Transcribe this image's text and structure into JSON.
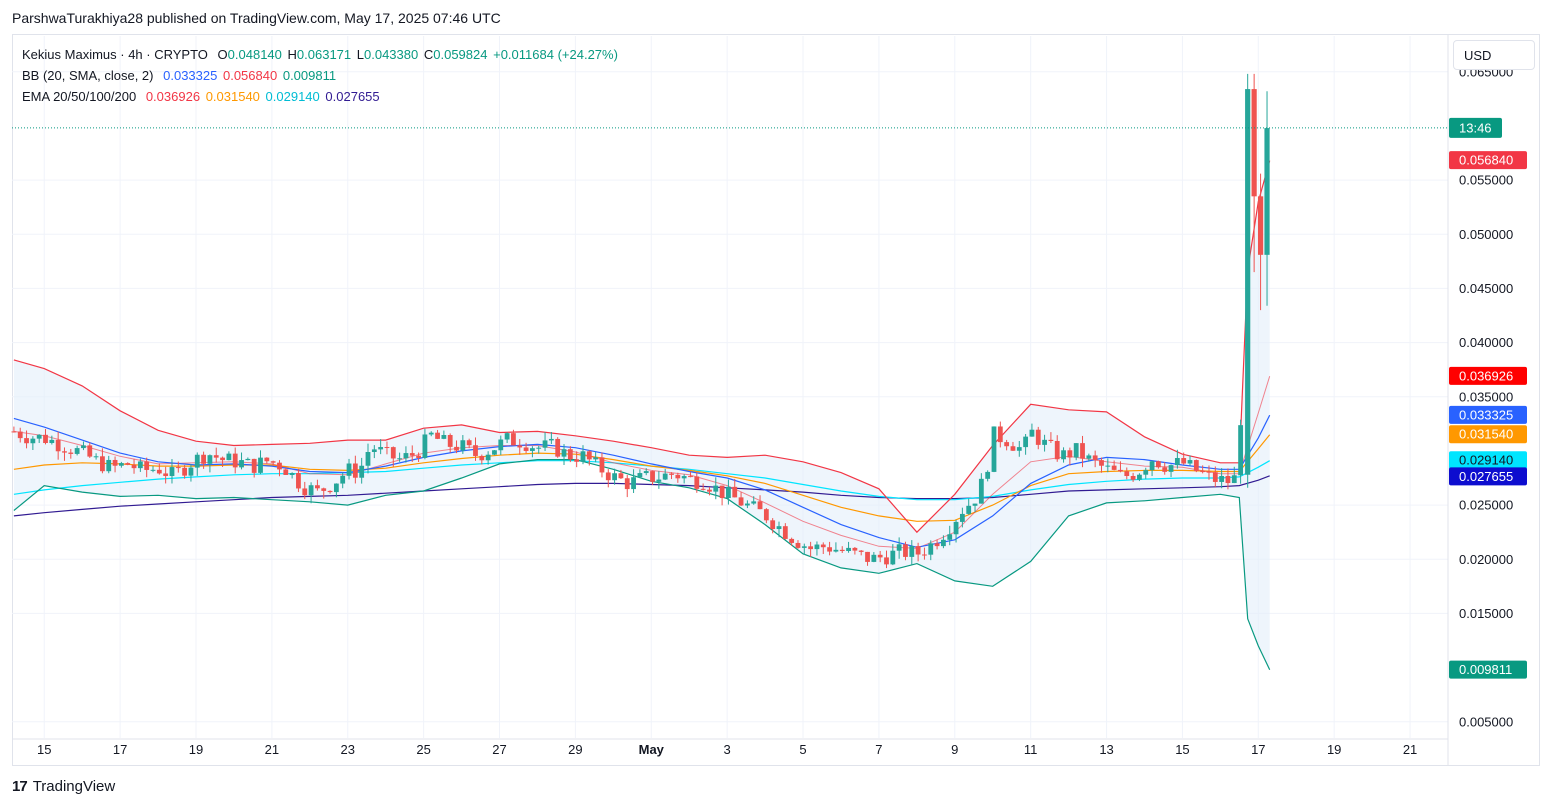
{
  "header": {
    "publish_line": "ParshwaTurakhiya28 published on TradingView.com, May 17, 2025 07:46 UTC"
  },
  "legend": {
    "symbol": {
      "name": "Kekius Maximus · 4h · CRYPTO",
      "open_label": "O",
      "open": "0.048140",
      "high_label": "H",
      "high": "0.063171",
      "low_label": "L",
      "low": "0.043380",
      "close_label": "C",
      "close": "0.059824",
      "change": "+0.011684 (+24.27%)"
    },
    "bb": {
      "name": "BB (20, SMA, close, 2)",
      "basis": "0.033325",
      "upper": "0.056840",
      "lower": "0.009811"
    },
    "ema": {
      "name": "EMA 20/50/100/200",
      "ema20": "0.036926",
      "ema50": "0.031540",
      "ema100": "0.029140",
      "ema200": "0.027655"
    }
  },
  "currency_button": {
    "label": "USD"
  },
  "footer": {
    "logo_mark": "17",
    "logo_text": "TradingView"
  },
  "colors": {
    "up": "#26a69a",
    "down": "#ef5350",
    "bb_basis": "#2962ff",
    "bb_band": "#f23645",
    "bb_lower": "#089981",
    "bb_fill": "#e3eefa",
    "ema20": "#f23645",
    "ema50": "#ff9800",
    "ema100": "#00e5ff",
    "ema200": "#311b92",
    "grid": "#f0f3fa",
    "axis_text": "#131722",
    "last_price_tag": "#089981"
  },
  "chart_data": {
    "type": "candlestick",
    "title": "Kekius Maximus · 4h · CRYPTO",
    "timeframe": "4h",
    "x_ticks": [
      "15",
      "17",
      "19",
      "21",
      "23",
      "25",
      "27",
      "29",
      "May",
      "3",
      "5",
      "7",
      "9",
      "11",
      "13",
      "15",
      "17",
      "19",
      "21"
    ],
    "x_tick_days": [
      15,
      17,
      19,
      21,
      23,
      25,
      27,
      29,
      31,
      33,
      35,
      37,
      39,
      41,
      43,
      45,
      47,
      49,
      51
    ],
    "x_range_days": [
      14.15,
      52.0
    ],
    "y_ticks": [
      "0.065000",
      "0.055000",
      "0.050000",
      "0.045000",
      "0.040000",
      "0.035000",
      "0.025000",
      "0.020000",
      "0.015000",
      "0.005000"
    ],
    "y_tick_values": [
      0.065,
      0.055,
      0.05,
      0.045,
      0.04,
      0.035,
      0.025,
      0.02,
      0.015,
      0.005
    ],
    "ylim": [
      0.0035,
      0.0683
    ],
    "last_price": 0.059824,
    "last_price_countdown": "13:46",
    "price_tags": [
      {
        "label": "0.056840",
        "value": 0.05684,
        "color": "#f23645"
      },
      {
        "label": "0.036926",
        "value": 0.036926,
        "color": "#ff0000"
      },
      {
        "label": "0.033325",
        "value": 0.033325,
        "color": "#2962ff"
      },
      {
        "label": "0.031540",
        "value": 0.03154,
        "color": "#ff9800"
      },
      {
        "label": "0.029140",
        "value": 0.02914,
        "color": "#00e5ff",
        "text_color": "#131722"
      },
      {
        "label": "0.027655",
        "value": 0.027655,
        "color": "#0d0dcf"
      },
      {
        "label": "0.009811",
        "value": 0.009811,
        "color": "#089981"
      }
    ],
    "close_path": [
      [
        14.2,
        0.0318
      ],
      [
        14.6,
        0.0313
      ],
      [
        15.0,
        0.0312
      ],
      [
        15.5,
        0.0305
      ],
      [
        16.0,
        0.0298
      ],
      [
        16.4,
        0.029
      ],
      [
        16.8,
        0.0284
      ],
      [
        17.2,
        0.0288
      ],
      [
        17.6,
        0.0282
      ],
      [
        18.0,
        0.0284
      ],
      [
        18.4,
        0.0277
      ],
      [
        18.9,
        0.029
      ],
      [
        19.3,
        0.0298
      ],
      [
        19.7,
        0.0292
      ],
      [
        20.1,
        0.029
      ],
      [
        20.5,
        0.0286
      ],
      [
        20.9,
        0.0291
      ],
      [
        21.3,
        0.0286
      ],
      [
        21.8,
        0.0268
      ],
      [
        22.2,
        0.0262
      ],
      [
        22.6,
        0.027
      ],
      [
        23.0,
        0.0282
      ],
      [
        23.3,
        0.0281
      ],
      [
        23.6,
        0.0305
      ],
      [
        24.0,
        0.0296
      ],
      [
        24.4,
        0.0292
      ],
      [
        24.8,
        0.0298
      ],
      [
        25.2,
        0.0314
      ],
      [
        25.6,
        0.0306
      ],
      [
        26.0,
        0.0304
      ],
      [
        26.4,
        0.0296
      ],
      [
        26.8,
        0.0302
      ],
      [
        27.2,
        0.031
      ],
      [
        27.6,
        0.0309
      ],
      [
        28.0,
        0.0303
      ],
      [
        28.4,
        0.0304
      ],
      [
        28.8,
        0.0296
      ],
      [
        29.2,
        0.0295
      ],
      [
        29.6,
        0.0285
      ],
      [
        30.0,
        0.0276
      ],
      [
        30.4,
        0.027
      ],
      [
        30.8,
        0.0275
      ],
      [
        31.2,
        0.0276
      ],
      [
        31.6,
        0.0279
      ],
      [
        32.0,
        0.0274
      ],
      [
        32.4,
        0.0272
      ],
      [
        32.8,
        0.0263
      ],
      [
        33.2,
        0.0256
      ],
      [
        33.6,
        0.0248
      ],
      [
        34.0,
        0.0241
      ],
      [
        34.4,
        0.0229
      ],
      [
        34.8,
        0.0218
      ],
      [
        35.2,
        0.021
      ],
      [
        35.6,
        0.0212
      ],
      [
        36.0,
        0.0208
      ],
      [
        36.4,
        0.0204
      ],
      [
        36.8,
        0.02
      ],
      [
        37.2,
        0.0203
      ],
      [
        37.6,
        0.0207
      ],
      [
        38.0,
        0.0205
      ],
      [
        38.4,
        0.0214
      ],
      [
        38.8,
        0.0228
      ],
      [
        39.2,
        0.0246
      ],
      [
        39.5,
        0.0255
      ],
      [
        39.8,
        0.0275
      ],
      [
        40.0,
        0.0315
      ],
      [
        40.4,
        0.031
      ],
      [
        40.8,
        0.03
      ],
      [
        41.0,
        0.0318
      ],
      [
        41.4,
        0.0305
      ],
      [
        41.8,
        0.0295
      ],
      [
        42.2,
        0.03
      ],
      [
        42.6,
        0.029
      ],
      [
        43.0,
        0.0283
      ],
      [
        43.4,
        0.0276
      ],
      [
        43.8,
        0.028
      ],
      [
        44.2,
        0.0293
      ],
      [
        44.6,
        0.0286
      ],
      [
        45.0,
        0.0289
      ],
      [
        45.4,
        0.0281
      ],
      [
        45.8,
        0.0274
      ],
      [
        46.2,
        0.0272
      ],
      [
        46.5,
        0.0276
      ],
      [
        46.72,
        0.0634
      ],
      [
        46.95,
        0.0535
      ],
      [
        47.1,
        0.0481
      ],
      [
        47.3,
        0.0598
      ]
    ],
    "bb_basis": [
      [
        14.2,
        0.033
      ],
      [
        15.0,
        0.0322
      ],
      [
        16.0,
        0.031
      ],
      [
        17.0,
        0.0298
      ],
      [
        18.0,
        0.029
      ],
      [
        19.0,
        0.0287
      ],
      [
        20.0,
        0.0288
      ],
      [
        21.0,
        0.0286
      ],
      [
        22.0,
        0.0281
      ],
      [
        23.0,
        0.028
      ],
      [
        24.0,
        0.0286
      ],
      [
        25.0,
        0.0294
      ],
      [
        26.0,
        0.03
      ],
      [
        27.0,
        0.0304
      ],
      [
        28.0,
        0.0306
      ],
      [
        29.0,
        0.0303
      ],
      [
        30.0,
        0.0296
      ],
      [
        31.0,
        0.0288
      ],
      [
        32.0,
        0.0281
      ],
      [
        33.0,
        0.0275
      ],
      [
        34.0,
        0.0264
      ],
      [
        35.0,
        0.0248
      ],
      [
        36.0,
        0.0232
      ],
      [
        37.0,
        0.022
      ],
      [
        38.0,
        0.0211
      ],
      [
        39.0,
        0.0218
      ],
      [
        40.0,
        0.024
      ],
      [
        41.0,
        0.027
      ],
      [
        42.0,
        0.0287
      ],
      [
        43.0,
        0.0294
      ],
      [
        44.0,
        0.0292
      ],
      [
        45.0,
        0.0287
      ],
      [
        46.0,
        0.0283
      ],
      [
        46.5,
        0.0283
      ],
      [
        47.0,
        0.0312
      ],
      [
        47.3,
        0.0333
      ]
    ],
    "bb_upper": [
      [
        14.2,
        0.0384
      ],
      [
        15.0,
        0.0376
      ],
      [
        16.0,
        0.036
      ],
      [
        17.0,
        0.0337
      ],
      [
        18.0,
        0.0319
      ],
      [
        19.0,
        0.0309
      ],
      [
        20.0,
        0.0305
      ],
      [
        21.0,
        0.0306
      ],
      [
        22.0,
        0.0307
      ],
      [
        23.0,
        0.031
      ],
      [
        24.0,
        0.031
      ],
      [
        25.0,
        0.0321
      ],
      [
        26.0,
        0.0324
      ],
      [
        27.0,
        0.0317
      ],
      [
        28.0,
        0.0318
      ],
      [
        29.0,
        0.0314
      ],
      [
        30.0,
        0.0309
      ],
      [
        31.0,
        0.0303
      ],
      [
        32.0,
        0.0296
      ],
      [
        33.0,
        0.0294
      ],
      [
        34.0,
        0.0296
      ],
      [
        35.0,
        0.029
      ],
      [
        36.0,
        0.028
      ],
      [
        37.0,
        0.0265
      ],
      [
        38.0,
        0.0225
      ],
      [
        39.0,
        0.026
      ],
      [
        40.0,
        0.0305
      ],
      [
        41.0,
        0.0343
      ],
      [
        42.0,
        0.0338
      ],
      [
        43.0,
        0.0336
      ],
      [
        44.0,
        0.0313
      ],
      [
        45.0,
        0.0297
      ],
      [
        46.0,
        0.0289
      ],
      [
        46.5,
        0.0289
      ],
      [
        46.72,
        0.0467
      ],
      [
        47.0,
        0.053
      ],
      [
        47.3,
        0.0568
      ]
    ],
    "bb_lower": [
      [
        14.2,
        0.0245
      ],
      [
        15.0,
        0.0268
      ],
      [
        16.0,
        0.0262
      ],
      [
        17.0,
        0.0258
      ],
      [
        18.0,
        0.0259
      ],
      [
        19.0,
        0.0256
      ],
      [
        20.0,
        0.0257
      ],
      [
        21.0,
        0.0255
      ],
      [
        22.0,
        0.0253
      ],
      [
        23.0,
        0.025
      ],
      [
        24.0,
        0.0259
      ],
      [
        25.0,
        0.0263
      ],
      [
        26.0,
        0.0275
      ],
      [
        27.0,
        0.0288
      ],
      [
        28.0,
        0.0292
      ],
      [
        29.0,
        0.0292
      ],
      [
        30.0,
        0.0283
      ],
      [
        31.0,
        0.0272
      ],
      [
        32.0,
        0.0266
      ],
      [
        33.0,
        0.0256
      ],
      [
        34.0,
        0.0232
      ],
      [
        35.0,
        0.0205
      ],
      [
        36.0,
        0.0192
      ],
      [
        37.0,
        0.0187
      ],
      [
        38.0,
        0.0196
      ],
      [
        39.0,
        0.018
      ],
      [
        40.0,
        0.0175
      ],
      [
        41.0,
        0.0198
      ],
      [
        42.0,
        0.024
      ],
      [
        43.0,
        0.0252
      ],
      [
        44.0,
        0.0254
      ],
      [
        45.0,
        0.0257
      ],
      [
        46.0,
        0.026
      ],
      [
        46.5,
        0.0257
      ],
      [
        46.72,
        0.0145
      ],
      [
        47.0,
        0.012
      ],
      [
        47.3,
        0.0098
      ]
    ],
    "ema20": [
      [
        14.2,
        0.0318
      ],
      [
        15.0,
        0.0314
      ],
      [
        16.0,
        0.0305
      ],
      [
        17.0,
        0.0295
      ],
      [
        18.0,
        0.0288
      ],
      [
        19.0,
        0.0289
      ],
      [
        20.0,
        0.029
      ],
      [
        21.0,
        0.0288
      ],
      [
        22.0,
        0.0279
      ],
      [
        23.0,
        0.0278
      ],
      [
        24.0,
        0.0288
      ],
      [
        25.0,
        0.0298
      ],
      [
        26.0,
        0.0303
      ],
      [
        27.0,
        0.0305
      ],
      [
        28.0,
        0.0305
      ],
      [
        29.0,
        0.0299
      ],
      [
        30.0,
        0.0289
      ],
      [
        31.0,
        0.0282
      ],
      [
        32.0,
        0.0278
      ],
      [
        33.0,
        0.0268
      ],
      [
        34.0,
        0.0252
      ],
      [
        35.0,
        0.0235
      ],
      [
        36.0,
        0.0222
      ],
      [
        37.0,
        0.0212
      ],
      [
        38.0,
        0.021
      ],
      [
        39.0,
        0.0225
      ],
      [
        40.0,
        0.026
      ],
      [
        41.0,
        0.029
      ],
      [
        42.0,
        0.0295
      ],
      [
        43.0,
        0.029
      ],
      [
        44.0,
        0.0286
      ],
      [
        45.0,
        0.0285
      ],
      [
        46.0,
        0.0279
      ],
      [
        46.5,
        0.0279
      ],
      [
        47.0,
        0.0335
      ],
      [
        47.3,
        0.0369
      ]
    ],
    "ema50": [
      [
        14.2,
        0.0283
      ],
      [
        15.0,
        0.0287
      ],
      [
        16.0,
        0.0289
      ],
      [
        17.0,
        0.0288
      ],
      [
        18.0,
        0.0286
      ],
      [
        19.0,
        0.0286
      ],
      [
        20.0,
        0.0287
      ],
      [
        21.0,
        0.0287
      ],
      [
        22.0,
        0.0283
      ],
      [
        23.0,
        0.0282
      ],
      [
        24.0,
        0.0284
      ],
      [
        25.0,
        0.0289
      ],
      [
        26.0,
        0.0293
      ],
      [
        27.0,
        0.0296
      ],
      [
        28.0,
        0.0298
      ],
      [
        29.0,
        0.0297
      ],
      [
        30.0,
        0.0292
      ],
      [
        31.0,
        0.0286
      ],
      [
        32.0,
        0.0282
      ],
      [
        33.0,
        0.0277
      ],
      [
        34.0,
        0.027
      ],
      [
        35.0,
        0.0259
      ],
      [
        36.0,
        0.0248
      ],
      [
        37.0,
        0.024
      ],
      [
        38.0,
        0.0235
      ],
      [
        39.0,
        0.0236
      ],
      [
        40.0,
        0.025
      ],
      [
        41.0,
        0.0268
      ],
      [
        42.0,
        0.0279
      ],
      [
        43.0,
        0.0281
      ],
      [
        44.0,
        0.0282
      ],
      [
        45.0,
        0.0282
      ],
      [
        46.0,
        0.0281
      ],
      [
        46.5,
        0.0281
      ],
      [
        47.0,
        0.0302
      ],
      [
        47.3,
        0.0315
      ]
    ],
    "ema100": [
      [
        14.2,
        0.026
      ],
      [
        15.0,
        0.0264
      ],
      [
        16.0,
        0.0268
      ],
      [
        17.0,
        0.0271
      ],
      [
        18.0,
        0.0274
      ],
      [
        19.0,
        0.0276
      ],
      [
        20.0,
        0.0278
      ],
      [
        21.0,
        0.0279
      ],
      [
        22.0,
        0.0279
      ],
      [
        23.0,
        0.028
      ],
      [
        24.0,
        0.0281
      ],
      [
        25.0,
        0.0284
      ],
      [
        26.0,
        0.0287
      ],
      [
        27.0,
        0.0289
      ],
      [
        28.0,
        0.0291
      ],
      [
        29.0,
        0.0291
      ],
      [
        30.0,
        0.0289
      ],
      [
        31.0,
        0.0286
      ],
      [
        32.0,
        0.0283
      ],
      [
        33.0,
        0.0279
      ],
      [
        34.0,
        0.0275
      ],
      [
        35.0,
        0.0269
      ],
      [
        36.0,
        0.0263
      ],
      [
        37.0,
        0.0258
      ],
      [
        38.0,
        0.0255
      ],
      [
        39.0,
        0.0255
      ],
      [
        40.0,
        0.0258
      ],
      [
        41.0,
        0.0264
      ],
      [
        42.0,
        0.0269
      ],
      [
        43.0,
        0.0272
      ],
      [
        44.0,
        0.0274
      ],
      [
        45.0,
        0.0275
      ],
      [
        46.0,
        0.0275
      ],
      [
        46.5,
        0.0276
      ],
      [
        47.0,
        0.0285
      ],
      [
        47.3,
        0.0291
      ]
    ],
    "ema200": [
      [
        14.2,
        0.024
      ],
      [
        15.0,
        0.0243
      ],
      [
        16.0,
        0.0246
      ],
      [
        17.0,
        0.0249
      ],
      [
        18.0,
        0.0251
      ],
      [
        19.0,
        0.0253
      ],
      [
        20.0,
        0.0255
      ],
      [
        21.0,
        0.0257
      ],
      [
        22.0,
        0.0258
      ],
      [
        23.0,
        0.0259
      ],
      [
        24.0,
        0.0261
      ],
      [
        25.0,
        0.0263
      ],
      [
        26.0,
        0.0265
      ],
      [
        27.0,
        0.0267
      ],
      [
        28.0,
        0.0269
      ],
      [
        29.0,
        0.027
      ],
      [
        30.0,
        0.027
      ],
      [
        31.0,
        0.0269
      ],
      [
        32.0,
        0.0268
      ],
      [
        33.0,
        0.0266
      ],
      [
        34.0,
        0.0264
      ],
      [
        35.0,
        0.0262
      ],
      [
        36.0,
        0.0259
      ],
      [
        37.0,
        0.0257
      ],
      [
        38.0,
        0.0256
      ],
      [
        39.0,
        0.0256
      ],
      [
        40.0,
        0.0257
      ],
      [
        41.0,
        0.026
      ],
      [
        42.0,
        0.0263
      ],
      [
        43.0,
        0.0264
      ],
      [
        44.0,
        0.0265
      ],
      [
        45.0,
        0.0266
      ],
      [
        46.0,
        0.0267
      ],
      [
        46.5,
        0.0268
      ],
      [
        47.0,
        0.0273
      ],
      [
        47.3,
        0.0277
      ]
    ]
  }
}
